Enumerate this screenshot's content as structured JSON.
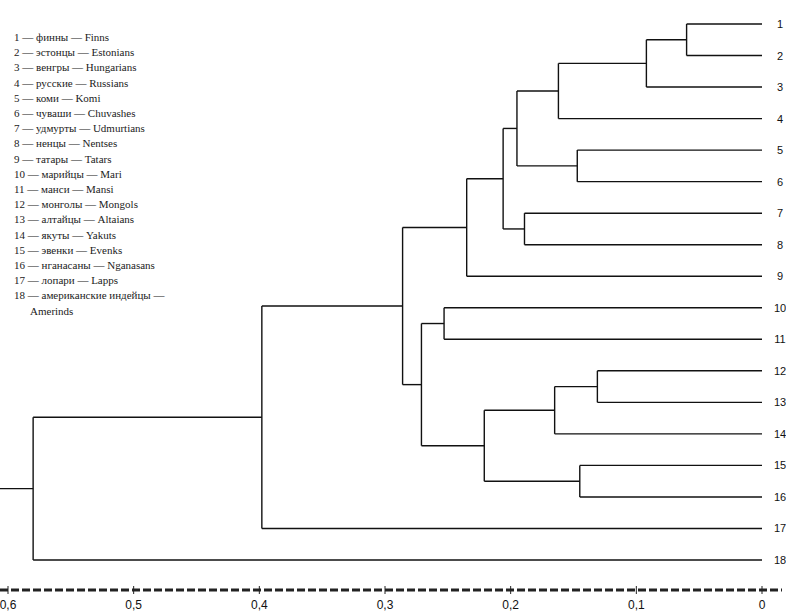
{
  "chart_data": {
    "type": "dendrogram",
    "leaf_names": [
      "1 — финны — Finns",
      "2 — эстонцы — Estonians",
      "3 — венгры — Hungarians",
      "4 — русские — Russians",
      "5 — коми — Komi",
      "6 — чуваши — Chuvashes",
      "7 — удмурты — Udmurtians",
      "8 — ненцы — Nentses",
      "9 — татары — Tatars",
      "10 — марийцы — Mari",
      "11 — манси — Mansi",
      "12 — монголы — Mongols",
      "13 — алтайцы — Altaians",
      "14 — якуты — Yakuts",
      "15 — эвенки — Evenks",
      "16 — нганасаны — Nganasans",
      "17 — лопари — Lapps",
      "18 — американские индейцы — Amerinds"
    ],
    "xlim": [
      0.6,
      0
    ],
    "xticks": [
      {
        "value": 0.6,
        "label": "0,6"
      },
      {
        "value": 0.5,
        "label": "0,5"
      },
      {
        "value": 0.4,
        "label": "0,4"
      },
      {
        "value": 0.3,
        "label": "0,3"
      },
      {
        "value": 0.2,
        "label": "0,2"
      },
      {
        "value": 0.1,
        "label": "0,1"
      },
      0
    ],
    "tree": {
      "height": 0.58,
      "children": [
        {
          "height": 0.398,
          "children": [
            {
              "height": 0.286,
              "children": [
                {
                  "height": 0.235,
                  "children": [
                    {
                      "height": 0.206,
                      "children": [
                        {
                          "height": 0.195,
                          "children": [
                            {
                              "height": 0.162,
                              "children": [
                                {
                                  "height": 0.092,
                                  "children": [
                                    {
                                      "height": 0.06,
                                      "children": [
                                        {
                                          "label": "1"
                                        },
                                        {
                                          "label": "2"
                                        }
                                      ]
                                    },
                                    {
                                      "label": "3"
                                    }
                                  ]
                                },
                                {
                                  "label": "4"
                                }
                              ]
                            },
                            {
                              "height": 0.147,
                              "children": [
                                {
                                  "label": "5"
                                },
                                {
                                  "label": "6"
                                }
                              ]
                            }
                          ]
                        },
                        {
                          "height": 0.189,
                          "children": [
                            {
                              "label": "7"
                            },
                            {
                              "label": "8"
                            }
                          ]
                        }
                      ]
                    },
                    {
                      "label": "9"
                    }
                  ]
                },
                {
                  "height": 0.271,
                  "children": [
                    {
                      "height": 0.253,
                      "children": [
                        {
                          "label": "10"
                        },
                        {
                          "label": "11"
                        }
                      ]
                    },
                    {
                      "height": 0.221,
                      "children": [
                        {
                          "height": 0.165,
                          "children": [
                            {
                              "height": 0.131,
                              "children": [
                                {
                                  "label": "12"
                                },
                                {
                                  "label": "13"
                                }
                              ]
                            },
                            {
                              "label": "14"
                            }
                          ]
                        },
                        {
                          "height": 0.145,
                          "children": [
                            {
                              "label": "15"
                            },
                            {
                              "label": "16"
                            }
                          ]
                        }
                      ]
                    }
                  ]
                }
              ]
            },
            {
              "label": "17"
            }
          ]
        },
        {
          "label": "18"
        }
      ]
    }
  }
}
